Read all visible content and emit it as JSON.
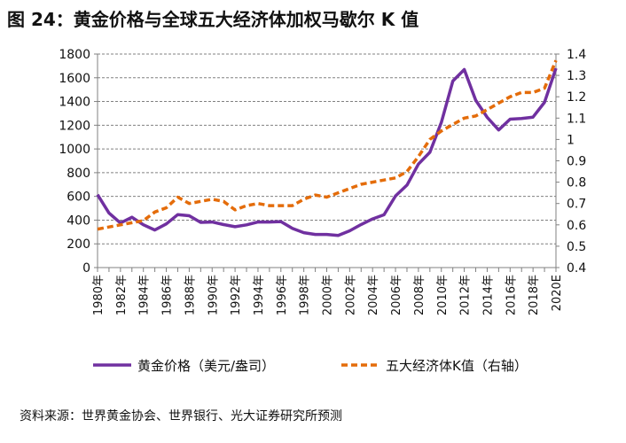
{
  "title": "图 24：黄金价格与全球五大经济体加权马歇尔 K 值",
  "source": "资料来源：世界黄金协会、世界银行、光大证券研究所预测",
  "colors": {
    "gold": "#7030A0",
    "k": "#E46C0A",
    "grid": "#808080"
  },
  "chart_data": {
    "type": "line",
    "title": "图 24：黄金价格与全球五大经济体加权马歇尔 K 值",
    "x": [
      "1980年",
      "1981年",
      "1982年",
      "1983年",
      "1984年",
      "1985年",
      "1986年",
      "1987年",
      "1988年",
      "1989年",
      "1990年",
      "1991年",
      "1992年",
      "1993年",
      "1994年",
      "1995年",
      "1996年",
      "1997年",
      "1998年",
      "1999年",
      "2000年",
      "2001年",
      "2002年",
      "2003年",
      "2004年",
      "2005年",
      "2006年",
      "2007年",
      "2008年",
      "2009年",
      "2010年",
      "2011年",
      "2012年",
      "2013年",
      "2014年",
      "2015年",
      "2016年",
      "2017年",
      "2018年",
      "2019年",
      "2020E"
    ],
    "x_tick_labels": [
      "1980年",
      "1982年",
      "1984年",
      "1986年",
      "1988年",
      "1990年",
      "1992年",
      "1994年",
      "1996年",
      "1998年",
      "2000年",
      "2002年",
      "2004年",
      "2006年",
      "2008年",
      "2010年",
      "2012年",
      "2014年",
      "2016年",
      "2018年",
      "2020E"
    ],
    "series": [
      {
        "name": "黄金价格（美元/盎司）",
        "axis": "left",
        "style": "solid",
        "values": [
          615,
          460,
          376,
          424,
          361,
          317,
          368,
          447,
          437,
          381,
          384,
          362,
          344,
          360,
          384,
          384,
          388,
          331,
          294,
          279,
          279,
          271,
          310,
          363,
          410,
          445,
          604,
          695,
          872,
          972,
          1225,
          1572,
          1669,
          1411,
          1266,
          1160,
          1251,
          1257,
          1268,
          1393,
          1680
        ]
      },
      {
        "name": "五大经济体K值（右轴）",
        "axis": "right",
        "style": "dashed",
        "values": [
          0.58,
          0.59,
          0.6,
          0.61,
          0.62,
          0.66,
          0.68,
          0.73,
          0.7,
          0.71,
          0.72,
          0.71,
          0.67,
          0.69,
          0.7,
          0.69,
          0.69,
          0.69,
          0.72,
          0.74,
          0.73,
          0.75,
          0.77,
          0.79,
          0.8,
          0.81,
          0.82,
          0.85,
          0.92,
          1.0,
          1.04,
          1.07,
          1.1,
          1.11,
          1.14,
          1.17,
          1.2,
          1.22,
          1.22,
          1.24,
          1.37
        ]
      }
    ],
    "ylim": [
      0,
      1800
    ],
    "y_ticks": [
      "0",
      "200",
      "400",
      "600",
      "800",
      "1000",
      "1200",
      "1400",
      "1600",
      "1800"
    ],
    "y2lim": [
      0.4,
      1.4
    ],
    "y2_ticks": [
      "0.4",
      "0.5",
      "0.6",
      "0.7",
      "0.8",
      "0.9",
      "1",
      "1.1",
      "1.2",
      "1.3",
      "1.4"
    ],
    "grid": true,
    "legend": "bottom"
  }
}
